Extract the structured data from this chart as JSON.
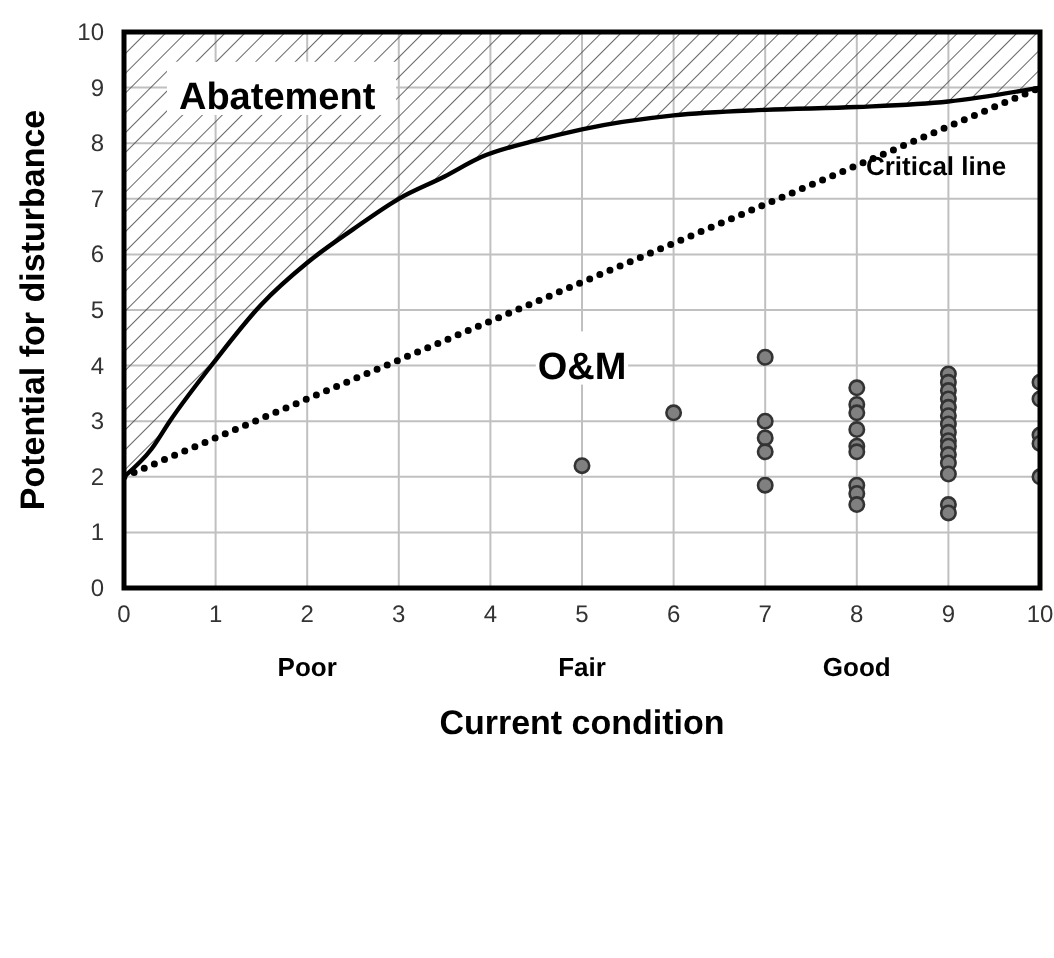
{
  "chart_data": {
    "type": "scatter",
    "xlabel": "Current condition",
    "ylabel": "Potential for disturbance",
    "xlim": [
      0,
      10
    ],
    "ylim": [
      0,
      10
    ],
    "xticks": [
      0,
      1,
      2,
      3,
      4,
      5,
      6,
      7,
      8,
      9,
      10
    ],
    "yticks": [
      0,
      1,
      2,
      3,
      4,
      5,
      6,
      7,
      8,
      9,
      10
    ],
    "grid": true,
    "marker": "circle",
    "series": [
      {
        "type": "line",
        "marker": "none",
        "color": "#000000",
        "line_style": "solid",
        "x": [
          0,
          0.3,
          0.5,
          1,
          1.5,
          2,
          2.5,
          3,
          3.5,
          3.9,
          4.5,
          5,
          6,
          7,
          8,
          9,
          10
        ],
        "values": [
          2,
          2.5,
          3,
          4.1,
          5.1,
          5.85,
          6.45,
          7,
          7.4,
          7.75,
          8.05,
          8.25,
          8.5,
          8.6,
          8.65,
          8.75,
          9
        ],
        "lower": [
          2,
          2.5,
          3,
          4.1,
          5.1,
          5.85,
          6.45,
          7,
          7.4,
          7.75,
          8.05,
          8.25,
          8.5,
          8.6,
          8.65,
          8.75,
          9
        ],
        "upper": [
          10,
          10,
          10,
          10,
          10,
          10,
          10,
          10,
          10,
          10,
          10,
          10,
          10,
          10,
          10,
          10,
          10
        ]
      },
      {
        "type": "line",
        "marker": "none",
        "color": "#000000",
        "line_style": "dotted",
        "x": [
          0,
          10
        ],
        "values": [
          2,
          9
        ]
      },
      {
        "color": "#808080",
        "x": [
          5,
          6,
          7,
          7,
          7,
          7,
          7,
          8,
          8,
          8,
          8,
          8,
          8,
          8,
          8,
          8,
          9,
          9,
          9,
          9,
          9,
          9,
          9,
          9,
          9,
          9,
          9,
          9,
          9,
          9,
          9,
          10,
          10,
          10,
          10,
          10
        ],
        "values": [
          2.2,
          3.15,
          4.15,
          3.0,
          2.7,
          2.45,
          1.85,
          3.6,
          3.3,
          3.15,
          2.85,
          2.55,
          2.45,
          1.85,
          1.7,
          1.5,
          3.85,
          3.7,
          3.55,
          3.4,
          3.25,
          3.1,
          2.95,
          2.8,
          2.65,
          2.55,
          2.4,
          2.25,
          2.05,
          1.5,
          1.35,
          3.7,
          3.4,
          2.75,
          2.6,
          2.0
        ]
      }
    ],
    "annotations": [
      "Abatement",
      "O&M",
      "Critical line",
      "Poor",
      "Fair",
      "Good"
    ]
  }
}
